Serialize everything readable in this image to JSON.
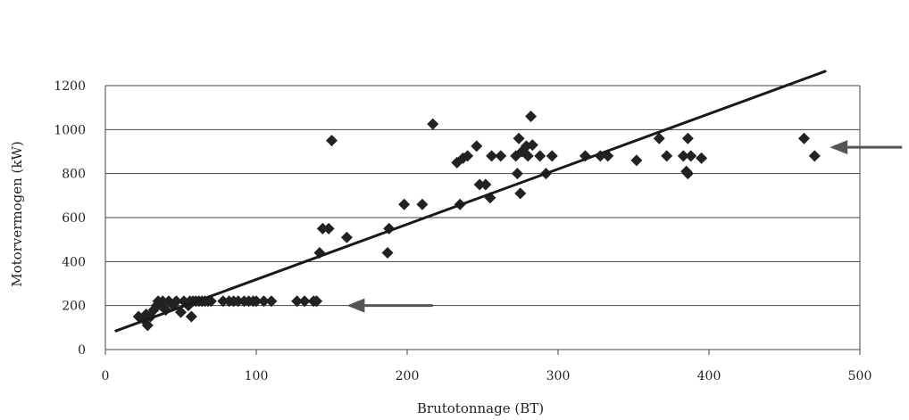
{
  "chart_data": {
    "type": "scatter",
    "title": "",
    "xlabel": "Brutotonnage (BT)",
    "ylabel": "Motorvermogen (kW)",
    "xlim": [
      0,
      500
    ],
    "ylim": [
      0,
      1200
    ],
    "xticks": [
      0,
      100,
      200,
      300,
      400,
      500
    ],
    "xtick_labels": [
      "0",
      "100",
      "200",
      "300",
      "400",
      "500"
    ],
    "yticks": [
      0,
      200,
      400,
      600,
      800,
      1000,
      1200
    ],
    "ytick_labels": [
      "0",
      "200",
      "400",
      "600",
      "800",
      "1000",
      "1200"
    ],
    "grid": "horizontal",
    "legend": "none",
    "marker": "diamond",
    "colors": {
      "points": "#222222",
      "trend": "#1a1a1a",
      "arrow": "#555555",
      "grid": "#444444"
    },
    "points": [
      [
        22,
        150
      ],
      [
        25,
        140
      ],
      [
        27,
        160
      ],
      [
        28,
        110
      ],
      [
        30,
        150
      ],
      [
        32,
        180
      ],
      [
        34,
        200
      ],
      [
        35,
        220
      ],
      [
        37,
        200
      ],
      [
        38,
        220
      ],
      [
        40,
        180
      ],
      [
        42,
        220
      ],
      [
        45,
        200
      ],
      [
        47,
        220
      ],
      [
        50,
        170
      ],
      [
        52,
        220
      ],
      [
        55,
        200
      ],
      [
        56,
        220
      ],
      [
        57,
        150
      ],
      [
        58,
        220
      ],
      [
        60,
        220
      ],
      [
        62,
        220
      ],
      [
        64,
        220
      ],
      [
        66,
        220
      ],
      [
        68,
        220
      ],
      [
        70,
        220
      ],
      [
        78,
        220
      ],
      [
        82,
        220
      ],
      [
        85,
        220
      ],
      [
        88,
        220
      ],
      [
        92,
        220
      ],
      [
        95,
        220
      ],
      [
        98,
        220
      ],
      [
        100,
        220
      ],
      [
        105,
        220
      ],
      [
        110,
        220
      ],
      [
        127,
        220
      ],
      [
        132,
        220
      ],
      [
        138,
        220
      ],
      [
        140,
        220
      ],
      [
        142,
        440
      ],
      [
        144,
        550
      ],
      [
        148,
        550
      ],
      [
        150,
        950
      ],
      [
        160,
        510
      ],
      [
        187,
        440
      ],
      [
        188,
        550
      ],
      [
        198,
        660
      ],
      [
        210,
        660
      ],
      [
        217,
        1025
      ],
      [
        233,
        850
      ],
      [
        235,
        660
      ],
      [
        237,
        870
      ],
      [
        240,
        880
      ],
      [
        246,
        925
      ],
      [
        248,
        750
      ],
      [
        252,
        750
      ],
      [
        255,
        690
      ],
      [
        256,
        880
      ],
      [
        262,
        880
      ],
      [
        272,
        880
      ],
      [
        273,
        800
      ],
      [
        274,
        960
      ],
      [
        275,
        710
      ],
      [
        276,
        900
      ],
      [
        279,
        925
      ],
      [
        280,
        880
      ],
      [
        282,
        1060
      ],
      [
        283,
        930
      ],
      [
        288,
        880
      ],
      [
        292,
        800
      ],
      [
        296,
        880
      ],
      [
        318,
        880
      ],
      [
        328,
        880
      ],
      [
        333,
        880
      ],
      [
        352,
        860
      ],
      [
        367,
        960
      ],
      [
        372,
        880
      ],
      [
        383,
        880
      ],
      [
        385,
        810
      ],
      [
        386,
        800
      ],
      [
        386,
        960
      ],
      [
        388,
        880
      ],
      [
        395,
        870
      ],
      [
        463,
        960
      ],
      [
        470,
        880
      ]
    ],
    "trendline": {
      "x": [
        7,
        477
      ],
      "y": [
        85,
        1265
      ]
    },
    "annotations": [
      {
        "type": "arrow",
        "from": [
          217,
          200
        ],
        "to": [
          160,
          200
        ]
      },
      {
        "type": "arrow",
        "from": [
          528,
          920
        ],
        "to": [
          480,
          920
        ]
      }
    ]
  }
}
